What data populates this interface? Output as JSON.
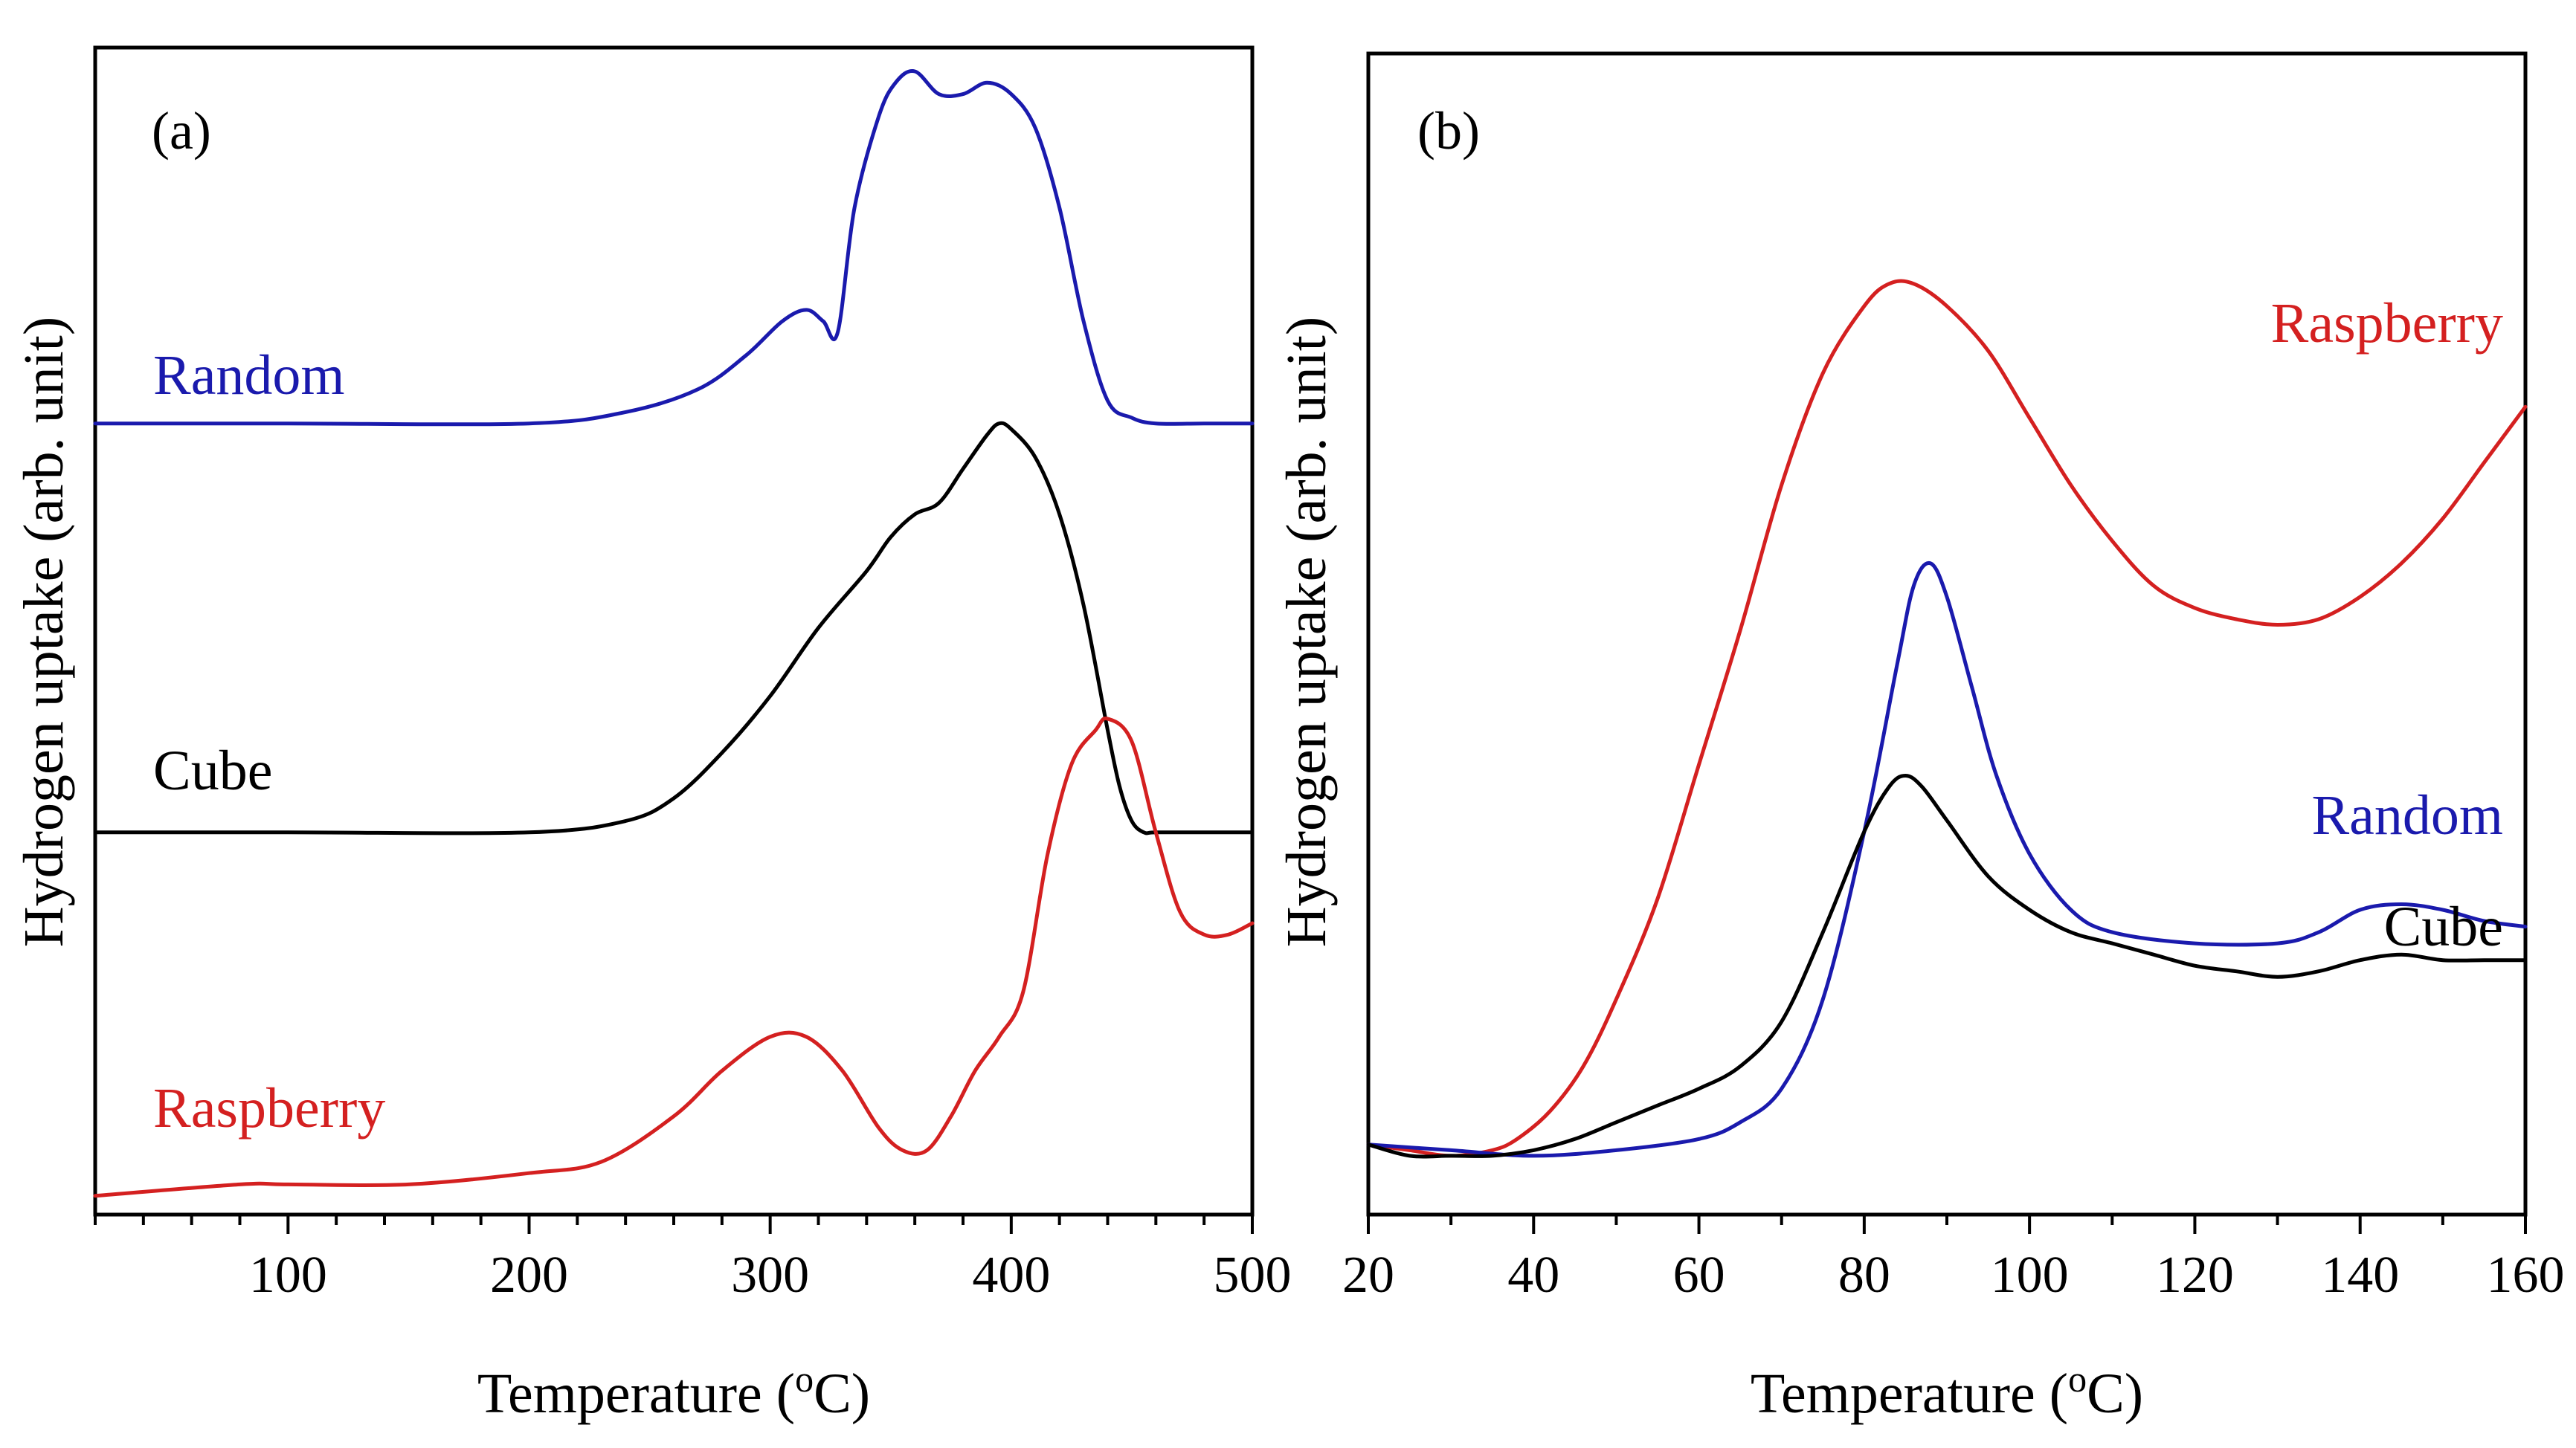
{
  "chart_data": [
    {
      "type": "line",
      "panel": "(a)",
      "xlabel": "Temperature (",
      "xlabel_super": "o",
      "xlabel_end": "C)",
      "ylabel": "Hydrogen uptake (arb. unit)",
      "xlim": [
        20,
        500
      ],
      "ylim": [
        0,
        1
      ],
      "xticks": [
        100,
        200,
        300,
        400,
        500
      ],
      "xtick_labels": [
        "100",
        "200",
        "300",
        "400",
        "500"
      ],
      "minor_xtick_step": 20,
      "y_ticks_shown": false,
      "series": [
        {
          "name": "Random",
          "color": "#1a1aad",
          "x": [
            20,
            100,
            200,
            240,
            270,
            290,
            305,
            315,
            322,
            328,
            335,
            345,
            352,
            360,
            370,
            380,
            390,
            400,
            410,
            420,
            430,
            440,
            450,
            460,
            480,
            500
          ],
          "y": [
            0.69,
            0.69,
            0.69,
            0.7,
            0.72,
            0.75,
            0.78,
            0.79,
            0.78,
            0.77,
            0.88,
            0.96,
            0.99,
            1.0,
            0.98,
            0.98,
            0.99,
            0.98,
            0.95,
            0.88,
            0.78,
            0.71,
            0.695,
            0.69,
            0.69,
            0.69
          ]
        },
        {
          "name": "Cube",
          "color": "#000000",
          "x": [
            20,
            100,
            200,
            240,
            260,
            280,
            300,
            320,
            340,
            350,
            360,
            370,
            380,
            390,
            395,
            400,
            410,
            420,
            430,
            440,
            445,
            450,
            455,
            460,
            480,
            500
          ],
          "y": [
            0.33,
            0.33,
            0.33,
            0.34,
            0.36,
            0.4,
            0.45,
            0.51,
            0.56,
            0.59,
            0.61,
            0.62,
            0.65,
            0.68,
            0.69,
            0.685,
            0.66,
            0.61,
            0.53,
            0.42,
            0.37,
            0.34,
            0.33,
            0.33,
            0.33,
            0.33
          ]
        },
        {
          "name": "Raspberry",
          "color": "#d42020",
          "x": [
            20,
            80,
            100,
            150,
            200,
            230,
            260,
            280,
            300,
            315,
            330,
            345,
            355,
            365,
            375,
            385,
            395,
            405,
            415,
            425,
            435,
            440,
            450,
            460,
            470,
            480,
            490,
            500
          ],
          "y": [
            0.01,
            0.02,
            0.02,
            0.02,
            0.03,
            0.04,
            0.08,
            0.12,
            0.15,
            0.15,
            0.12,
            0.07,
            0.05,
            0.05,
            0.08,
            0.12,
            0.15,
            0.19,
            0.31,
            0.39,
            0.42,
            0.43,
            0.41,
            0.33,
            0.26,
            0.24,
            0.24,
            0.25
          ]
        }
      ]
    },
    {
      "type": "line",
      "panel": "(b)",
      "xlabel": "Temperature (",
      "xlabel_super": "o",
      "xlabel_end": "C)",
      "ylabel": "Hydrogen uptake (arb. unit)",
      "xlim": [
        20,
        160
      ],
      "ylim": [
        0,
        1
      ],
      "xticks": [
        20,
        40,
        60,
        80,
        100,
        120,
        140,
        160
      ],
      "xtick_labels": [
        "20",
        "40",
        "60",
        "80",
        "100",
        "120",
        "140",
        "160"
      ],
      "minor_xtick_step": 10,
      "y_ticks_shown": false,
      "series": [
        {
          "name": "Raspberry",
          "color": "#d42020",
          "x": [
            20,
            25,
            30,
            35,
            38,
            42,
            46,
            50,
            55,
            60,
            65,
            70,
            75,
            80,
            83,
            86,
            90,
            95,
            100,
            105,
            110,
            115,
            120,
            125,
            130,
            135,
            140,
            145,
            150,
            155,
            160
          ],
          "y": [
            0.04,
            0.035,
            0.03,
            0.035,
            0.045,
            0.07,
            0.11,
            0.17,
            0.26,
            0.38,
            0.5,
            0.63,
            0.73,
            0.79,
            0.81,
            0.81,
            0.79,
            0.75,
            0.69,
            0.63,
            0.58,
            0.54,
            0.52,
            0.51,
            0.505,
            0.51,
            0.53,
            0.56,
            0.6,
            0.65,
            0.7
          ]
        },
        {
          "name": "Random",
          "color": "#1a1aad",
          "x": [
            20,
            30,
            40,
            50,
            60,
            65,
            70,
            75,
            80,
            84,
            86,
            88,
            90,
            93,
            96,
            100,
            105,
            110,
            120,
            130,
            135,
            140,
            145,
            150,
            155,
            160
          ],
          "y": [
            0.04,
            0.035,
            0.03,
            0.035,
            0.045,
            0.06,
            0.09,
            0.17,
            0.32,
            0.47,
            0.54,
            0.56,
            0.53,
            0.45,
            0.37,
            0.3,
            0.25,
            0.23,
            0.22,
            0.22,
            0.23,
            0.25,
            0.255,
            0.25,
            0.24,
            0.235
          ]
        },
        {
          "name": "Cube",
          "color": "#000000",
          "x": [
            20,
            25,
            30,
            35,
            40,
            45,
            50,
            55,
            60,
            65,
            70,
            75,
            80,
            83,
            85,
            87,
            90,
            95,
            100,
            105,
            110,
            115,
            120,
            125,
            130,
            135,
            140,
            145,
            150,
            155,
            160
          ],
          "y": [
            0.04,
            0.03,
            0.03,
            0.03,
            0.035,
            0.045,
            0.06,
            0.075,
            0.09,
            0.11,
            0.15,
            0.23,
            0.32,
            0.36,
            0.37,
            0.36,
            0.33,
            0.28,
            0.25,
            0.23,
            0.22,
            0.21,
            0.2,
            0.195,
            0.19,
            0.195,
            0.205,
            0.21,
            0.205,
            0.205,
            0.205
          ]
        }
      ]
    }
  ],
  "labels": {
    "panel_a": "(a)",
    "panel_b": "(b)",
    "a_random": "Random",
    "a_cube": "Cube",
    "a_raspberry": "Raspberry",
    "b_raspberry": "Raspberry",
    "b_random": "Random",
    "b_cube": "Cube"
  },
  "colors": {
    "random": "#1a1aad",
    "cube": "#000000",
    "raspberry": "#d42020"
  }
}
